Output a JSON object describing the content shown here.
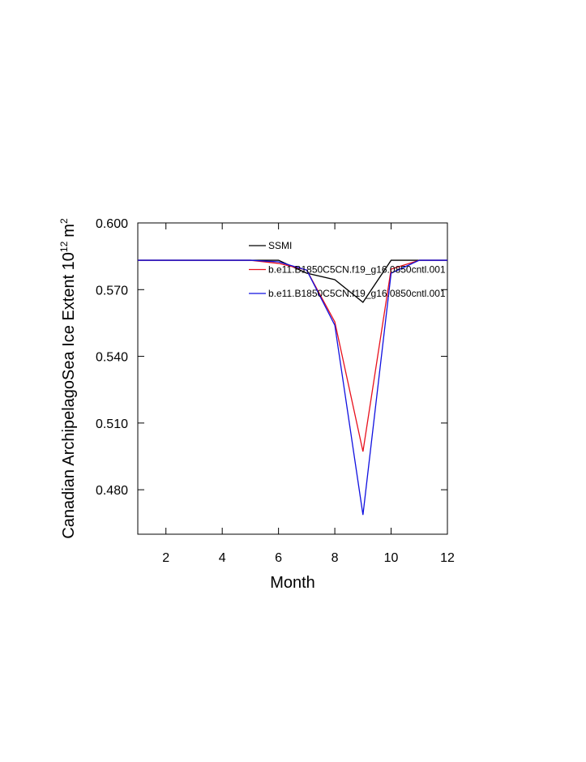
{
  "chart_data": {
    "type": "line",
    "x_label": "Month",
    "y_label": "Canadian ArchipelagoSea Ice Extent 10",
    "y_label_exp": "12",
    "y_label_unit": "m",
    "y_label_unit_exp": "2",
    "x": [
      1,
      2,
      3,
      4,
      5,
      6,
      7,
      8,
      9,
      10,
      11,
      12
    ],
    "xlim": [
      1,
      12
    ],
    "xticks": [
      2,
      4,
      6,
      8,
      10,
      12
    ],
    "ylim": [
      0.46,
      0.6
    ],
    "yticks": [
      {
        "value": 0.6,
        "label": "0.600"
      },
      {
        "value": 0.57,
        "label": "0.570"
      },
      {
        "value": 0.54,
        "label": "0.540"
      },
      {
        "value": 0.51,
        "label": "0.510"
      },
      {
        "value": 0.48,
        "label": "0.480"
      }
    ],
    "grid": false,
    "series": [
      {
        "name": "SSMI",
        "color": "#000000",
        "values": [
          0.5832,
          0.5832,
          0.5832,
          0.5832,
          0.5832,
          0.5832,
          0.5774,
          0.5745,
          0.5643,
          0.5832,
          0.5832,
          0.5832
        ]
      },
      {
        "name": "b.e11.B1850C5CN.f19_g16.0850cntl.001",
        "color": "#e8101c",
        "values": [
          0.5832,
          0.5832,
          0.5832,
          0.5832,
          0.5832,
          0.5818,
          0.5788,
          0.5555,
          0.4972,
          0.5792,
          0.5832,
          0.5832
        ]
      },
      {
        "name": "b.e11.B1850C5CN.f19_g16.0850cntl.001",
        "color": "#1010e0",
        "values": [
          0.5832,
          0.5832,
          0.5832,
          0.5832,
          0.5832,
          0.5825,
          0.5788,
          0.554,
          0.4687,
          0.5774,
          0.5832,
          0.5832
        ]
      }
    ]
  }
}
